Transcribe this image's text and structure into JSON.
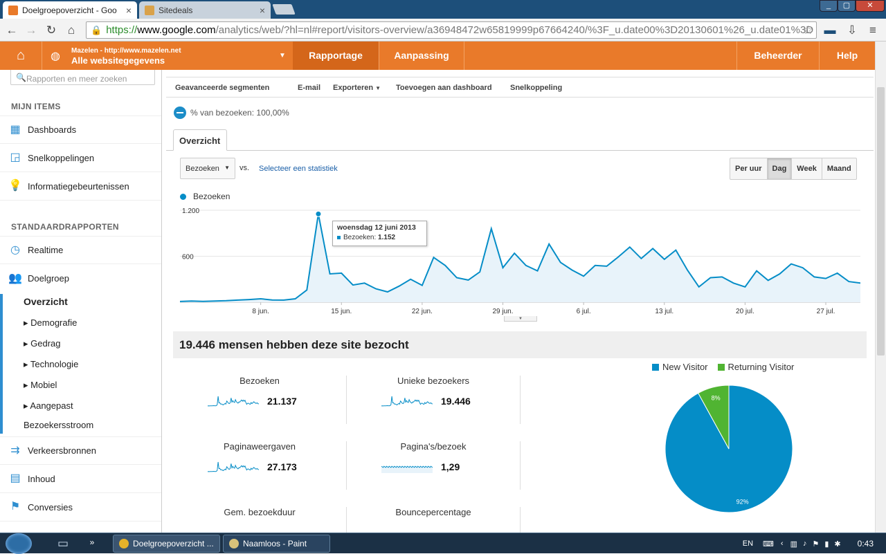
{
  "browser": {
    "tabs": [
      {
        "title": "Doelgroepoverzicht - Goo",
        "close": "×"
      },
      {
        "title": "Sitedeals",
        "close": "×"
      }
    ],
    "window_buttons": {
      "minimize": "_",
      "maximize": "▢",
      "close": "✕"
    },
    "url": {
      "scheme": "https://",
      "host": "www.google.com",
      "path": "/analytics/web/?hl=nl#report/visitors-overview/a36948472w65819999p67664240/%3F_u.date00%3D20130601%26_u.date01%3D"
    }
  },
  "ga_header": {
    "site_line1": "Mazelen - http://www.mazelen.net",
    "site_line2": "Alle websitegegevens",
    "tabs": {
      "reporting": "Rapportage",
      "customization": "Aanpassing",
      "admin": "Beheerder",
      "help": "Help"
    }
  },
  "sidebar": {
    "search_placeholder": "Rapporten en meer zoeken",
    "my_items_header": "MIJN ITEMS",
    "my_items": [
      "Dashboards",
      "Snelkoppelingen",
      "Informatiegebeurtenissen"
    ],
    "standard_header": "STANDAARDRAPPORTEN",
    "realtime": "Realtime",
    "audience": "Doelgroep",
    "audience_sub": {
      "overview": "Overzicht",
      "items": [
        "Demografie",
        "Gedrag",
        "Technologie",
        "Mobiel",
        "Aangepast"
      ],
      "flow": "Bezoekersstroom"
    },
    "bottom_items": [
      "Verkeersbronnen",
      "Inhoud",
      "Conversies"
    ]
  },
  "actions": [
    "Geavanceerde segmenten",
    "E-mail",
    "Exporteren",
    "Toevoegen aan dashboard",
    "Snelkoppeling"
  ],
  "segment_text": "% van bezoeken: 100,00%",
  "overview_tab": "Overzicht",
  "metric_select": "Bezoeken",
  "vs_text": "vs.",
  "select_stat": "Selecteer een statistiek",
  "periods": [
    "Per uur",
    "Dag",
    "Week",
    "Maand"
  ],
  "active_period": "Dag",
  "tooltip": {
    "date": "woensdag 12 juni 2013",
    "label": "Bezoeken:",
    "value": "1.152"
  },
  "summary_title": "19.446 mensen hebben deze site bezocht",
  "metrics": [
    {
      "label": "Bezoeken",
      "value": "21.137"
    },
    {
      "label": "Unieke bezoekers",
      "value": "19.446"
    },
    {
      "label": "Paginaweergaven",
      "value": "27.173"
    },
    {
      "label": "Pagina's/bezoek",
      "value": "1,29"
    },
    {
      "label": "Gem. bezoekduur",
      "value": ""
    },
    {
      "label": "Bouncepercentage",
      "value": ""
    }
  ],
  "colors": {
    "accent": "#058dc7",
    "orange": "#e97a2a",
    "green": "#50b432"
  },
  "chart_data": [
    {
      "type": "area",
      "series": [
        {
          "name": "Bezoeken",
          "values": [
            10,
            15,
            12,
            15,
            20,
            28,
            35,
            45,
            30,
            28,
            45,
            160,
            1152,
            370,
            380,
            225,
            250,
            175,
            135,
            210,
            300,
            220,
            585,
            480,
            320,
            290,
            395,
            960,
            450,
            640,
            480,
            410,
            760,
            520,
            420,
            340,
            480,
            470,
            590,
            720,
            570,
            700,
            560,
            680,
            420,
            200,
            320,
            330,
            250,
            200,
            410,
            285,
            370,
            500,
            450,
            330,
            310,
            380,
            270,
            250
          ]
        }
      ],
      "x_tick_labels": [
        "8 jun.",
        "15 jun.",
        "22 jun.",
        "29 jun.",
        "6 jul.",
        "13 jul.",
        "20 jul.",
        "27 jul."
      ],
      "y_tick_labels": [
        "1.200",
        "600"
      ],
      "ylim": [
        0,
        1200
      ],
      "grid": true
    },
    {
      "type": "pie",
      "slices": [
        {
          "name": "New Visitor",
          "value": 92,
          "label": "92%",
          "color": "#058dc7"
        },
        {
          "name": "Returning Visitor",
          "value": 8,
          "label": "8%",
          "color": "#50b432"
        }
      ]
    }
  ],
  "taskbar": {
    "apps": [
      "Doelgroepoverzicht ...",
      "Naamloos - Paint"
    ],
    "lang": "EN",
    "time": "0:43"
  }
}
